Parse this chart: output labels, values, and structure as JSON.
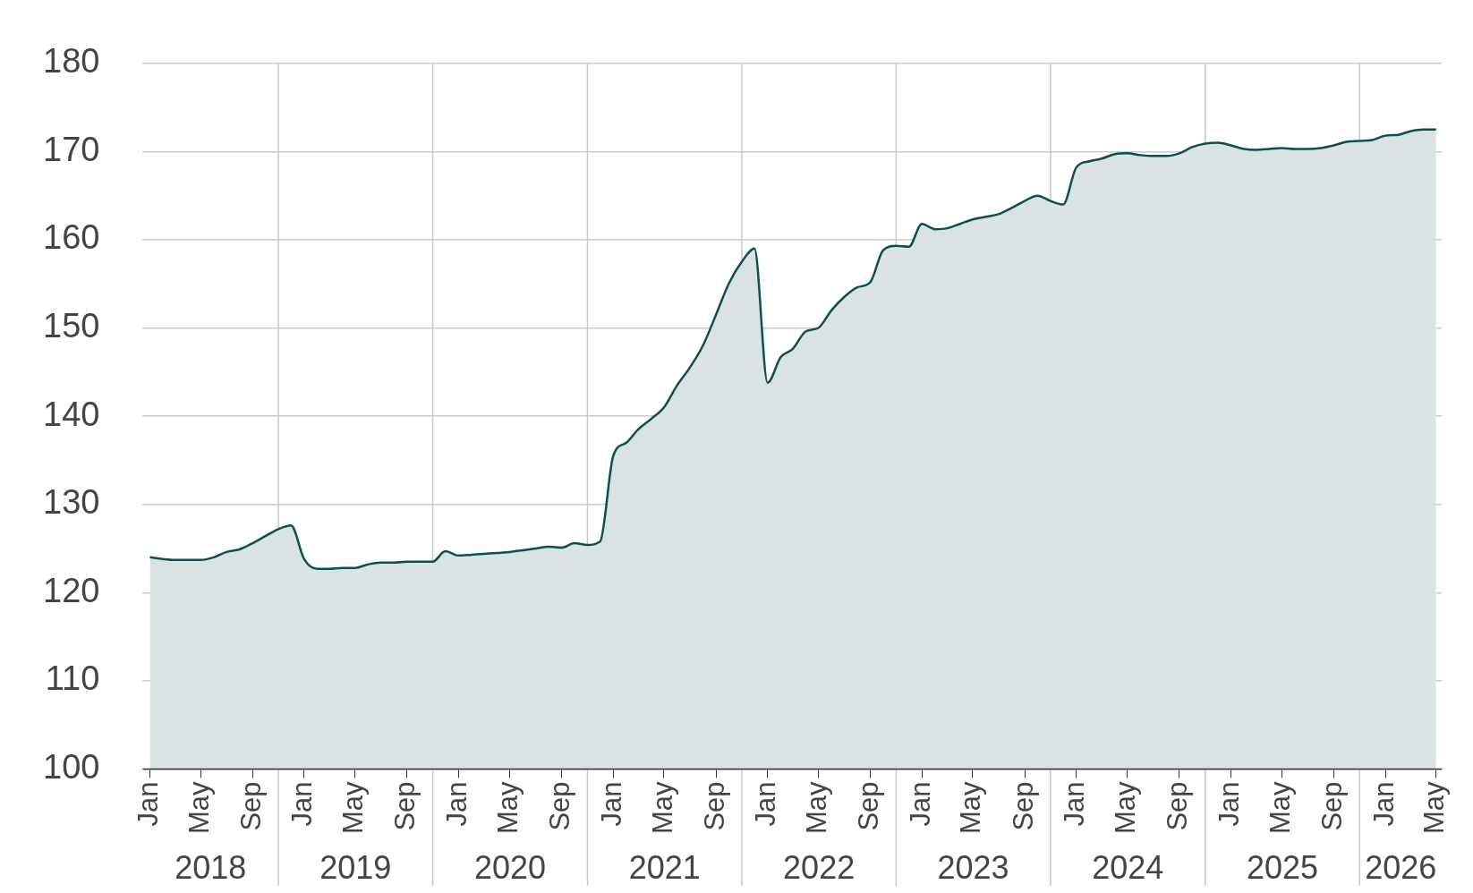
{
  "chart_data": {
    "type": "area",
    "x": [
      "2018-01",
      "2018-02",
      "2018-03",
      "2018-04",
      "2018-05",
      "2018-06",
      "2018-07",
      "2018-08",
      "2018-09",
      "2018-10",
      "2018-11",
      "2018-12",
      "2019-01",
      "2019-02",
      "2019-03",
      "2019-04",
      "2019-05",
      "2019-06",
      "2019-07",
      "2019-08",
      "2019-09",
      "2019-10",
      "2019-11",
      "2019-12",
      "2020-01",
      "2020-02",
      "2020-03",
      "2020-04",
      "2020-05",
      "2020-06",
      "2020-07",
      "2020-08",
      "2020-09",
      "2020-10",
      "2020-11",
      "2020-12",
      "2021-01",
      "2021-02",
      "2021-03",
      "2021-04",
      "2021-05",
      "2021-06",
      "2021-07",
      "2021-08",
      "2021-09",
      "2021-10",
      "2021-11",
      "2021-12",
      "2022-01",
      "2022-02",
      "2022-03",
      "2022-04",
      "2022-05",
      "2022-06",
      "2022-07",
      "2022-08",
      "2022-09",
      "2022-10",
      "2022-11",
      "2022-12",
      "2023-01",
      "2023-02",
      "2023-03",
      "2023-04",
      "2023-05",
      "2023-06",
      "2023-07",
      "2023-08",
      "2023-09",
      "2023-10",
      "2023-11",
      "2023-12",
      "2024-01",
      "2024-02",
      "2024-03",
      "2024-04",
      "2024-05",
      "2024-06",
      "2024-07",
      "2024-08",
      "2024-09",
      "2024-10",
      "2024-11",
      "2024-12",
      "2025-01",
      "2025-02",
      "2025-03",
      "2025-04",
      "2025-05",
      "2025-06",
      "2025-07",
      "2025-08",
      "2025-09",
      "2025-10",
      "2025-11",
      "2025-12",
      "2026-01",
      "2026-02",
      "2026-03",
      "2026-04",
      "2026-05"
    ],
    "series": [
      {
        "color": "#0d4f4a",
        "values": [
          124,
          123.8,
          123.7,
          123.7,
          123.7,
          124,
          124.6,
          124.9,
          125.6,
          126.4,
          127.2,
          127.6,
          123.8,
          122.7,
          122.7,
          122.8,
          122.8,
          123.2,
          123.4,
          123.4,
          123.5,
          123.5,
          123.5,
          124.7,
          124.2,
          124.3,
          124.4,
          124.5,
          124.6,
          124.8,
          125,
          125.2,
          125.1,
          125.6,
          125.4,
          125.8,
          135.5,
          137,
          138.5,
          139.7,
          141,
          143.5,
          145.5,
          148,
          151.5,
          155,
          157.5,
          159,
          143.8,
          146.7,
          147.6,
          149.6,
          150,
          152,
          153.5,
          154.6,
          155.2,
          158.8,
          159.3,
          159.2,
          161.8,
          161.2,
          161.3,
          161.8,
          162.3,
          162.6,
          162.9,
          163.6,
          164.4,
          165,
          164.4,
          164,
          168.2,
          168.9,
          169.2,
          169.7,
          169.8,
          169.6,
          169.5,
          169.5,
          169.8,
          170.5,
          170.9,
          171,
          170.7,
          170.3,
          170.2,
          170.3,
          170.4,
          170.3,
          170.3,
          170.4,
          170.7,
          171.1,
          171.2,
          171.3,
          171.8,
          171.9,
          172.3,
          172.5,
          172.5
        ]
      }
    ],
    "xlim": [
      "2017-12-15",
      "2026-05-15"
    ],
    "xticks": [
      {
        "value": "2018-01",
        "label": "Jan"
      },
      {
        "value": "2018-05",
        "label": "May"
      },
      {
        "value": "2018-09",
        "label": "Sep"
      },
      {
        "value": "2019-01",
        "label": "Jan"
      },
      {
        "value": "2019-05",
        "label": "May"
      },
      {
        "value": "2019-09",
        "label": "Sep"
      },
      {
        "value": "2020-01",
        "label": "Jan"
      },
      {
        "value": "2020-05",
        "label": "May"
      },
      {
        "value": "2020-09",
        "label": "Sep"
      },
      {
        "value": "2021-01",
        "label": "Jan"
      },
      {
        "value": "2021-05",
        "label": "May"
      },
      {
        "value": "2021-09",
        "label": "Sep"
      },
      {
        "value": "2022-01",
        "label": "Jan"
      },
      {
        "value": "2022-05",
        "label": "May"
      },
      {
        "value": "2022-09",
        "label": "Sep"
      },
      {
        "value": "2023-01",
        "label": "Jan"
      },
      {
        "value": "2023-05",
        "label": "May"
      },
      {
        "value": "2023-09",
        "label": "Sep"
      },
      {
        "value": "2024-01",
        "label": "Jan"
      },
      {
        "value": "2024-05",
        "label": "May"
      },
      {
        "value": "2024-09",
        "label": "Sep"
      },
      {
        "value": "2025-01",
        "label": "Jan"
      },
      {
        "value": "2025-05",
        "label": "May"
      },
      {
        "value": "2025-09",
        "label": "Sep"
      },
      {
        "value": "2026-01",
        "label": "Jan"
      },
      {
        "value": "2026-05",
        "label": "May"
      }
    ],
    "ylim": [
      100,
      180
    ],
    "yticks": [
      100,
      110,
      120,
      130,
      140,
      150,
      160,
      170,
      180
    ],
    "grid": "y",
    "ref_lines": [
      {
        "axis": "x",
        "value": "2018-11",
        "color": "#c8c8c8"
      },
      {
        "axis": "x",
        "value": "2019-11",
        "color": "#c8c8c8"
      },
      {
        "axis": "x",
        "value": "2020-11",
        "color": "#c8c8c8"
      },
      {
        "axis": "x",
        "value": "2021-11",
        "color": "#c8c8c8"
      },
      {
        "axis": "x",
        "value": "2022-11",
        "color": "#c8c8c8"
      },
      {
        "axis": "x",
        "value": "2023-11",
        "color": "#c8c8c8"
      },
      {
        "axis": "x",
        "value": "2024-11",
        "color": "#c8c8c8"
      },
      {
        "axis": "x",
        "value": "2025-11",
        "color": "#c8c8c8"
      }
    ],
    "annotations": [
      "2018",
      "2019",
      "2020",
      "2021",
      "2022",
      "2023",
      "2024",
      "2025",
      "2026"
    ]
  }
}
